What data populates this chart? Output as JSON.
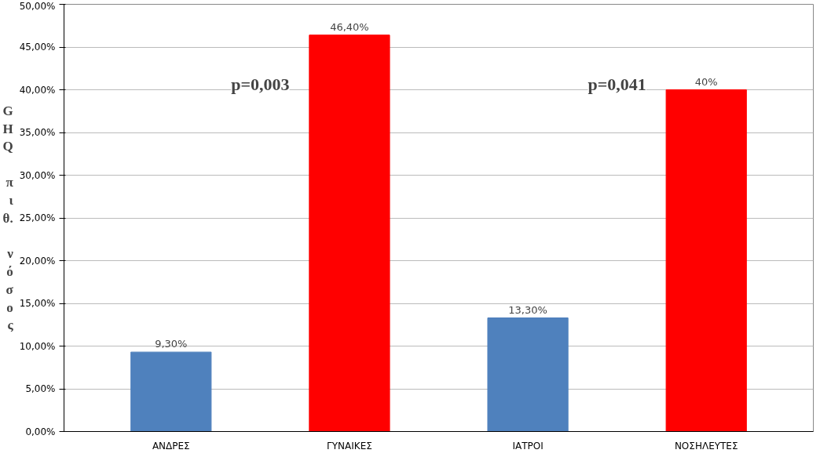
{
  "chart_data": {
    "type": "bar",
    "ylabel": "GHQ πιθ. νόσος",
    "categories": [
      "ΑΝΔΡΕΣ",
      "ΓΥΝΑΙΚΕΣ",
      "ΙΑΤΡΟΙ",
      "ΝΟΣΗΛΕΥΤΕΣ"
    ],
    "values": [
      9.3,
      46.4,
      13.3,
      40
    ],
    "colors": [
      "#4f81bd",
      "#ff0000",
      "#4f81bd",
      "#ff0000"
    ],
    "value_labels": [
      "9,30%",
      "46,40%",
      "13,30%",
      "40%"
    ],
    "ylim": [
      0,
      50
    ],
    "yticks": [
      {
        "value": 0,
        "label": "0,00%"
      },
      {
        "value": 5,
        "label": "5,00%"
      },
      {
        "value": 10,
        "label": "10,00%"
      },
      {
        "value": 15,
        "label": "15,00%"
      },
      {
        "value": 20,
        "label": "20,00%"
      },
      {
        "value": 25,
        "label": "25,00%"
      },
      {
        "value": 30,
        "label": "30,00%"
      },
      {
        "value": 35,
        "label": "35,00%"
      },
      {
        "value": 40,
        "label": "40,00%"
      },
      {
        "value": 45,
        "label": "45,00%"
      },
      {
        "value": 50,
        "label": "50,00%"
      }
    ],
    "annotations": [
      "p=0,003",
      "p=0,041"
    ],
    "grid": "y"
  }
}
